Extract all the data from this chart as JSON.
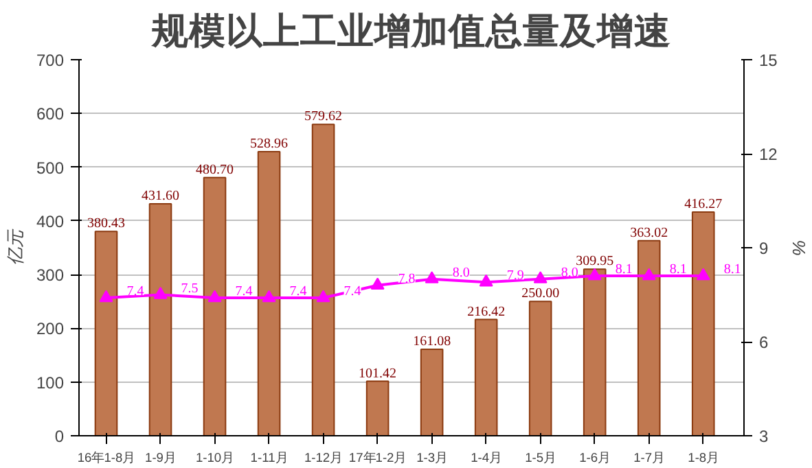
{
  "chart_data": {
    "type": "bar",
    "title": "规模以上工业增加值总量及增速",
    "ylabel": "亿元",
    "y2label": "%",
    "categories": [
      "16年1-8月",
      "1-9月",
      "1-10月",
      "1-11月",
      "1-12月",
      "17年1-2月",
      "1-3月",
      "1-4月",
      "1-5月",
      "1-6月",
      "1-7月",
      "1-8月"
    ],
    "series": [
      {
        "color": "#c07850",
        "values": [
          380.43,
          431.6,
          480.7,
          528.96,
          579.62,
          101.42,
          161.08,
          216.42,
          250.0,
          309.95,
          363.02,
          416.27
        ],
        "value_labels": [
          "380.43",
          "431.60",
          "480.70",
          "528.96",
          "579.62",
          "101.42",
          "161.08",
          "216.42",
          "250.00",
          "309.95",
          "363.02",
          "416.27"
        ]
      },
      {
        "type": "line",
        "axis": "y2",
        "color": "#ff00ff",
        "marker": "triangle",
        "values": [
          7.4,
          7.5,
          7.4,
          7.4,
          7.4,
          7.8,
          8.0,
          7.9,
          8.0,
          8.1,
          8.1,
          8.1
        ],
        "value_labels": [
          "7.4",
          "7.5",
          "7.4",
          "7.4",
          "7.4",
          "7.8",
          "8.0",
          "7.9",
          "8.0",
          "8.1",
          "8.1",
          "8.1"
        ]
      }
    ],
    "ylim": [
      0,
      700
    ],
    "yticks": [
      0,
      100,
      200,
      300,
      400,
      500,
      600,
      700
    ],
    "y2lim": [
      3,
      15
    ],
    "y2ticks": [
      3,
      6,
      9,
      12,
      15
    ],
    "grid": "y"
  }
}
